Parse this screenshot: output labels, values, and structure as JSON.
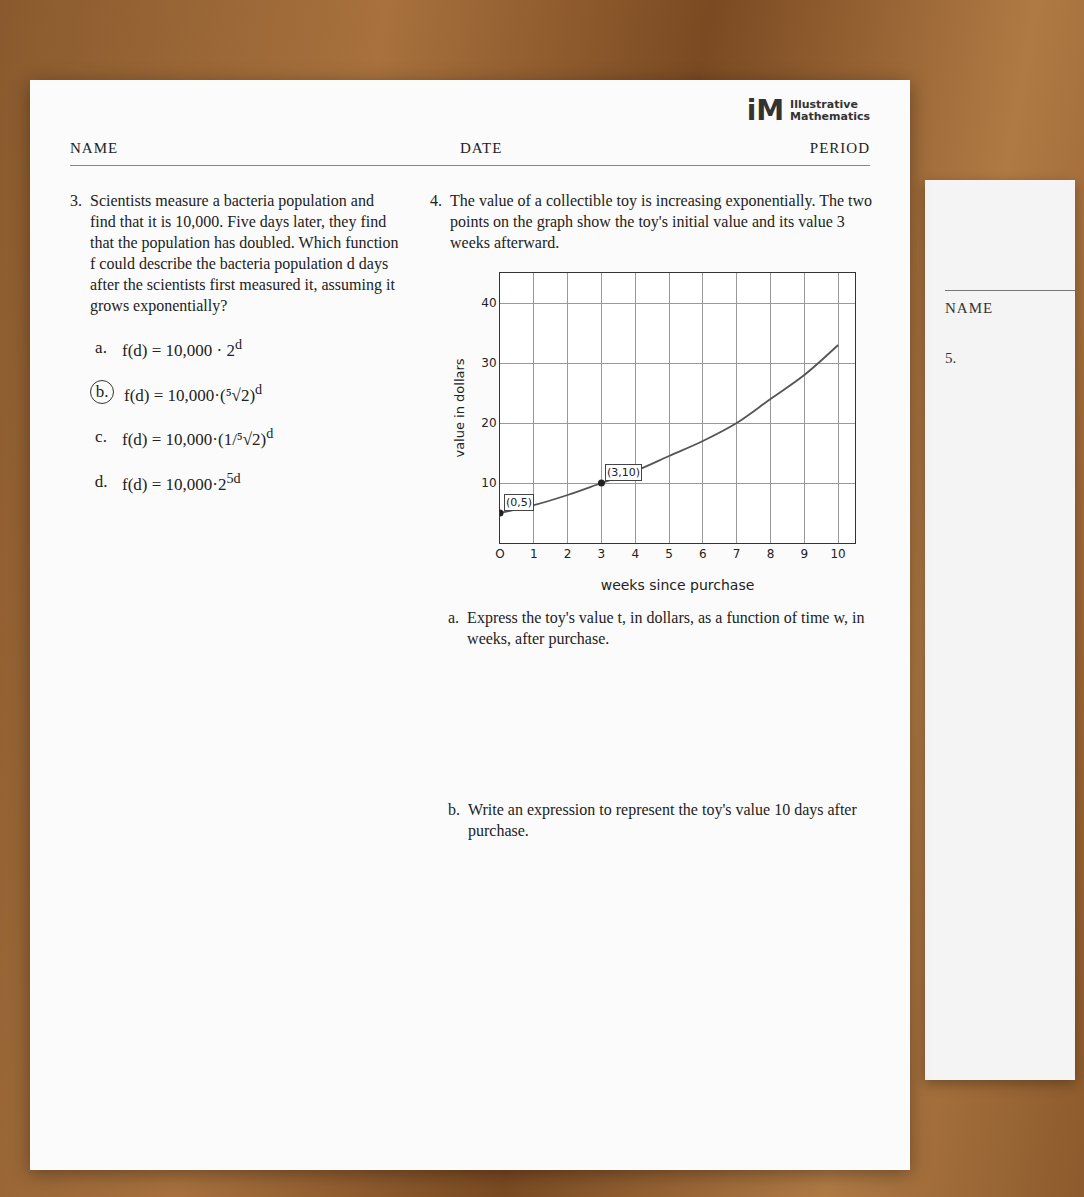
{
  "page": {
    "header": {
      "name": "NAME",
      "date": "DATE",
      "period": "PERIOD",
      "logo_mark": "iM",
      "logo_text": [
        "Illustrative",
        "Mathematics"
      ]
    },
    "question_3": {
      "number": "3.",
      "text": "Scientists measure a bacteria population and find that it is 10,000. Five days later, they find that the population has doubled. Which function f could describe the bacteria population d days after the scientists first measured it, assuming it grows exponentially?",
      "options": [
        {
          "letter": "a.",
          "expr": "f(d) = 10,000 · 2",
          "exp": "d",
          "circled": false
        },
        {
          "letter": "b.",
          "expr": "f(d) = 10,000·(⁵√2)",
          "exp": "d",
          "circled": true
        },
        {
          "letter": "c.",
          "expr": "f(d) = 10,000·(1/⁵√2)",
          "exp": "d",
          "circled": false
        },
        {
          "letter": "d.",
          "expr": "f(d) = 10,000·2",
          "exp": "5d",
          "circled": false
        }
      ]
    },
    "question_4": {
      "number": "4.",
      "text": "The value of a collectible toy is increasing exponentially. The two points on the graph show the toy's initial value and its value 3 weeks afterward.",
      "parts": [
        {
          "letter": "a.",
          "text": "Express the toy's value t, in dollars, as a function of time w, in weeks, after purchase."
        },
        {
          "letter": "b.",
          "text": "Write an expression to represent the toy's value 10 days after purchase."
        }
      ]
    },
    "next_page": {
      "name": "NAME",
      "number": "5."
    }
  },
  "chart_data": {
    "type": "line",
    "x_label": "weeks since purchase",
    "y_label": "value in dollars",
    "x": [
      0,
      1,
      2,
      3,
      4,
      5,
      6,
      7,
      8,
      9,
      10
    ],
    "values": [
      5,
      6.3,
      8,
      10,
      12,
      14.5,
      17,
      20,
      24,
      28,
      33
    ],
    "points": [
      {
        "x": 0,
        "y": 5,
        "label": "(0,5)"
      },
      {
        "x": 3,
        "y": 10,
        "label": "(3,10)"
      }
    ],
    "xlim": [
      0,
      10.5
    ],
    "ylim": [
      0,
      45
    ],
    "xticks": [
      {
        "value": 0,
        "label": "O"
      },
      1,
      2,
      3,
      4,
      5,
      6,
      7,
      8,
      9,
      10
    ],
    "yticks": [
      10,
      20,
      30,
      40
    ],
    "grid": true,
    "color": "#555555",
    "marker": "circle"
  }
}
